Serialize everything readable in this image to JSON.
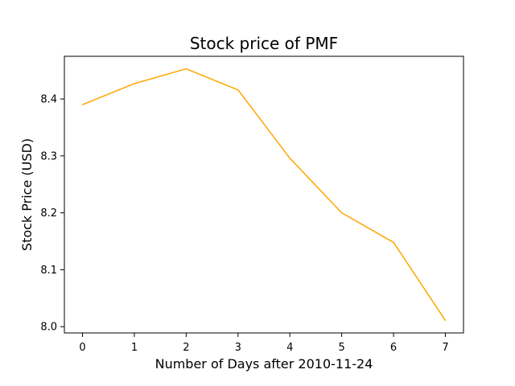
{
  "chart_data": {
    "type": "line",
    "title": "Stock price of PMF",
    "xlabel": "Number of Days after 2010-11-24",
    "ylabel": "Stock Price (USD)",
    "x": [
      0,
      1,
      2,
      3,
      4,
      5,
      6,
      7
    ],
    "series": [
      {
        "values": [
          8.39,
          8.427,
          8.453,
          8.416,
          8.296,
          8.2,
          8.148,
          8.011
        ],
        "color": "#ffa500"
      }
    ],
    "xticks": [
      "0",
      "1",
      "2",
      "3",
      "4",
      "5",
      "6",
      "7"
    ],
    "yticks": [
      "8.0",
      "8.1",
      "8.2",
      "8.3",
      "8.4"
    ],
    "xlim": [
      -0.35,
      7.35
    ],
    "ylim": [
      7.989,
      8.475
    ],
    "grid": false,
    "legend": "none"
  }
}
